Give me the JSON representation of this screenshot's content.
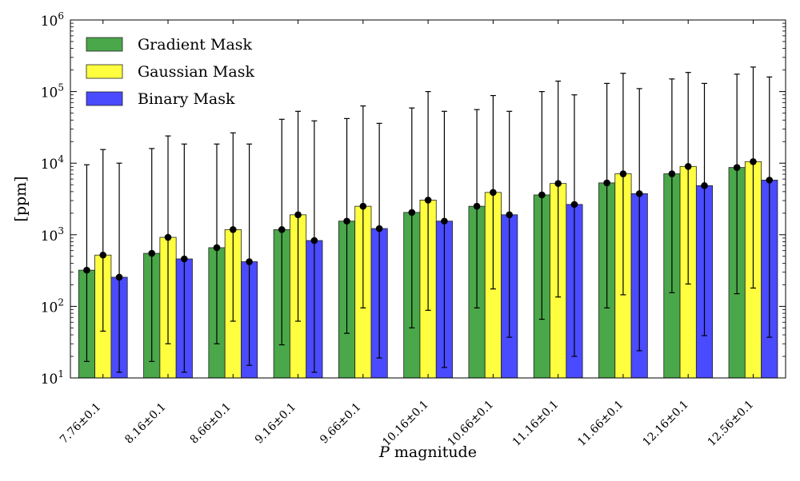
{
  "chart_data": {
    "type": "bar",
    "xlabel": "P magnitude",
    "xlabel_var": "P",
    "xlabel_rest": " magnitude",
    "ylabel": "[ppm]",
    "yscale": "log",
    "ylim": [
      10,
      1000000
    ],
    "yticks": [
      {
        "value": 10,
        "base": "10",
        "exp": "1"
      },
      {
        "value": 100,
        "base": "10",
        "exp": "2"
      },
      {
        "value": 1000,
        "base": "10",
        "exp": "3"
      },
      {
        "value": 10000,
        "base": "10",
        "exp": "4"
      },
      {
        "value": 100000,
        "base": "10",
        "exp": "5"
      },
      {
        "value": 1000000,
        "base": "10",
        "exp": "6"
      }
    ],
    "grid": false,
    "legend_position": "top-left",
    "categories": [
      "7.76±0.1",
      "8.16±0.1",
      "8.66±0.1",
      "9.16±0.1",
      "9.66±0.1",
      "10.16±0.1",
      "10.66±0.1",
      "11.16±0.1",
      "11.66±0.1",
      "12.16±0.1",
      "12.56±0.1"
    ],
    "series": [
      {
        "name": "Gradient Mask",
        "color": "#4aa74a",
        "values": [
          320,
          550,
          660,
          1180,
          1550,
          2050,
          2500,
          3600,
          5300,
          7100,
          8700
        ],
        "err_low": [
          17,
          17,
          30,
          29,
          42,
          50,
          95,
          66,
          95,
          155,
          150
        ],
        "err_high": [
          9500,
          16000,
          18500,
          41000,
          42000,
          59000,
          56000,
          100000,
          130000,
          150000,
          175000
        ]
      },
      {
        "name": "Gaussian Mask",
        "color": "#ffff40",
        "values": [
          520,
          920,
          1180,
          1900,
          2500,
          3050,
          3900,
          5200,
          7100,
          9000,
          10500
        ],
        "err_low": [
          45,
          30,
          62,
          62,
          95,
          88,
          175,
          135,
          145,
          205,
          180
        ],
        "err_high": [
          15500,
          24000,
          26500,
          53000,
          63000,
          100000,
          88000,
          140000,
          180000,
          185000,
          220000
        ]
      },
      {
        "name": "Binary Mask",
        "color": "#4a4aff",
        "values": [
          255,
          460,
          420,
          830,
          1220,
          1550,
          1900,
          2650,
          3750,
          4850,
          5800
        ],
        "err_low": [
          12,
          12,
          15,
          12,
          19,
          14,
          37,
          20,
          24,
          39,
          37
        ],
        "err_high": [
          10000,
          18500,
          18500,
          39000,
          36000,
          53000,
          53000,
          90000,
          110000,
          130000,
          160000
        ]
      }
    ]
  }
}
